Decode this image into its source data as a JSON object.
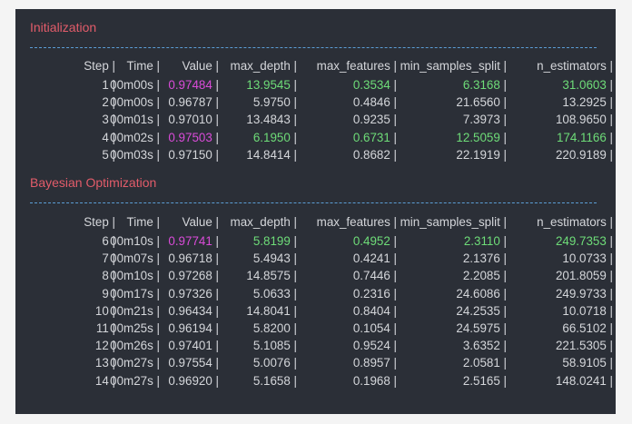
{
  "sections": [
    {
      "title": "Initialization",
      "header": {
        "step": "Step |",
        "time": "Time |",
        "value": "Value |",
        "max_depth": "max_depth |",
        "max_features": "max_features |",
        "min_samples_split": "min_samples_split |",
        "n_estimators": "n_estimators |"
      },
      "rows": [
        {
          "step": "1",
          "time": "00m00s",
          "value": "0.97484",
          "max_depth": "13.9545",
          "max_features": "0.3534",
          "min_samples_split": "6.3168",
          "n_estimators": "31.0603",
          "highlight": true
        },
        {
          "step": "2",
          "time": "00m00s",
          "value": "0.96787",
          "max_depth": "5.9750",
          "max_features": "0.4846",
          "min_samples_split": "21.6560",
          "n_estimators": "13.2925",
          "highlight": false
        },
        {
          "step": "3",
          "time": "00m01s",
          "value": "0.97010",
          "max_depth": "13.4843",
          "max_features": "0.9235",
          "min_samples_split": "7.3973",
          "n_estimators": "108.9650",
          "highlight": false
        },
        {
          "step": "4",
          "time": "00m02s",
          "value": "0.97503",
          "max_depth": "6.1950",
          "max_features": "0.6731",
          "min_samples_split": "12.5059",
          "n_estimators": "174.1166",
          "highlight": true
        },
        {
          "step": "5",
          "time": "00m03s",
          "value": "0.97150",
          "max_depth": "14.8414",
          "max_features": "0.8682",
          "min_samples_split": "22.1919",
          "n_estimators": "220.9189",
          "highlight": false
        }
      ]
    },
    {
      "title": "Bayesian Optimization",
      "header": {
        "step": "Step |",
        "time": "Time |",
        "value": "Value |",
        "max_depth": "max_depth |",
        "max_features": "max_features |",
        "min_samples_split": "min_samples_split |",
        "n_estimators": "n_estimators |"
      },
      "rows": [
        {
          "step": "6",
          "time": "00m10s",
          "value": "0.97741",
          "max_depth": "5.8199",
          "max_features": "0.4952",
          "min_samples_split": "2.3110",
          "n_estimators": "249.7353",
          "highlight": true
        },
        {
          "step": "7",
          "time": "00m07s",
          "value": "0.96718",
          "max_depth": "5.4943",
          "max_features": "0.4241",
          "min_samples_split": "2.1376",
          "n_estimators": "10.0733",
          "highlight": false
        },
        {
          "step": "8",
          "time": "00m10s",
          "value": "0.97268",
          "max_depth": "14.8575",
          "max_features": "0.7446",
          "min_samples_split": "2.2085",
          "n_estimators": "201.8059",
          "highlight": false
        },
        {
          "step": "9",
          "time": "00m17s",
          "value": "0.97326",
          "max_depth": "5.0633",
          "max_features": "0.2316",
          "min_samples_split": "24.6086",
          "n_estimators": "249.9733",
          "highlight": false
        },
        {
          "step": "10",
          "time": "00m21s",
          "value": "0.96434",
          "max_depth": "14.8041",
          "max_features": "0.8404",
          "min_samples_split": "24.2535",
          "n_estimators": "10.0718",
          "highlight": false
        },
        {
          "step": "11",
          "time": "00m25s",
          "value": "0.96194",
          "max_depth": "5.8200",
          "max_features": "0.1054",
          "min_samples_split": "24.5975",
          "n_estimators": "66.5102",
          "highlight": false
        },
        {
          "step": "12",
          "time": "00m26s",
          "value": "0.97401",
          "max_depth": "5.1085",
          "max_features": "0.9524",
          "min_samples_split": "3.6352",
          "n_estimators": "221.5305",
          "highlight": false
        },
        {
          "step": "13",
          "time": "00m27s",
          "value": "0.97554",
          "max_depth": "5.0076",
          "max_features": "0.8957",
          "min_samples_split": "2.0581",
          "n_estimators": "58.9105",
          "highlight": false
        },
        {
          "step": "14",
          "time": "00m27s",
          "value": "0.96920",
          "max_depth": "5.1658",
          "max_features": "0.1968",
          "min_samples_split": "2.5165",
          "n_estimators": "148.0241",
          "highlight": false
        }
      ]
    }
  ],
  "colors": {
    "background": "#2b2f37",
    "text": "#d4d6da",
    "section_title": "#e25c6a",
    "separator": "#5b9ed6",
    "best_value": "#d94bd8",
    "best_params": "#6edc78"
  }
}
